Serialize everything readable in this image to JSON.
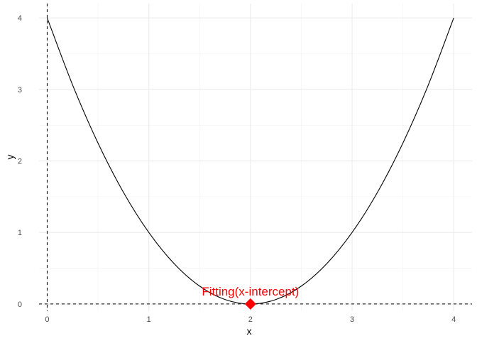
{
  "chart_data": {
    "type": "line",
    "title": "",
    "xlabel": "x",
    "ylabel": "y",
    "xlim": [
      -0.08,
      4.18
    ],
    "ylim": [
      -0.1,
      4.2
    ],
    "xticks": [
      0,
      1,
      2,
      3,
      4
    ],
    "yticks": [
      0,
      1,
      2,
      3,
      4
    ],
    "xtick_labels": [
      "0",
      "1",
      "2",
      "3",
      "4"
    ],
    "ytick_labels": [
      "0",
      "1",
      "2",
      "3",
      "4"
    ],
    "grid": true,
    "legend": "none",
    "series": [
      {
        "x": [
          0,
          0.25,
          0.5,
          0.75,
          1,
          1.25,
          1.5,
          1.75,
          2,
          2.25,
          2.5,
          2.75,
          3,
          3.25,
          3.5,
          3.75,
          4
        ],
        "values": [
          4,
          3.0625,
          2.25,
          1.5625,
          1,
          0.5625,
          0.25,
          0.0625,
          0,
          0.0625,
          0.25,
          0.5625,
          1,
          1.5625,
          2.25,
          3.0625,
          4
        ],
        "color": "#000000"
      }
    ],
    "reference_lines": {
      "vertical_x": 0,
      "horizontal_y": 0,
      "style": "dashed"
    },
    "highlight_point": {
      "x": 2,
      "y": 0,
      "label": "Fitting(x-intercept)",
      "color": "#ff0000",
      "shape": "diamond"
    }
  }
}
